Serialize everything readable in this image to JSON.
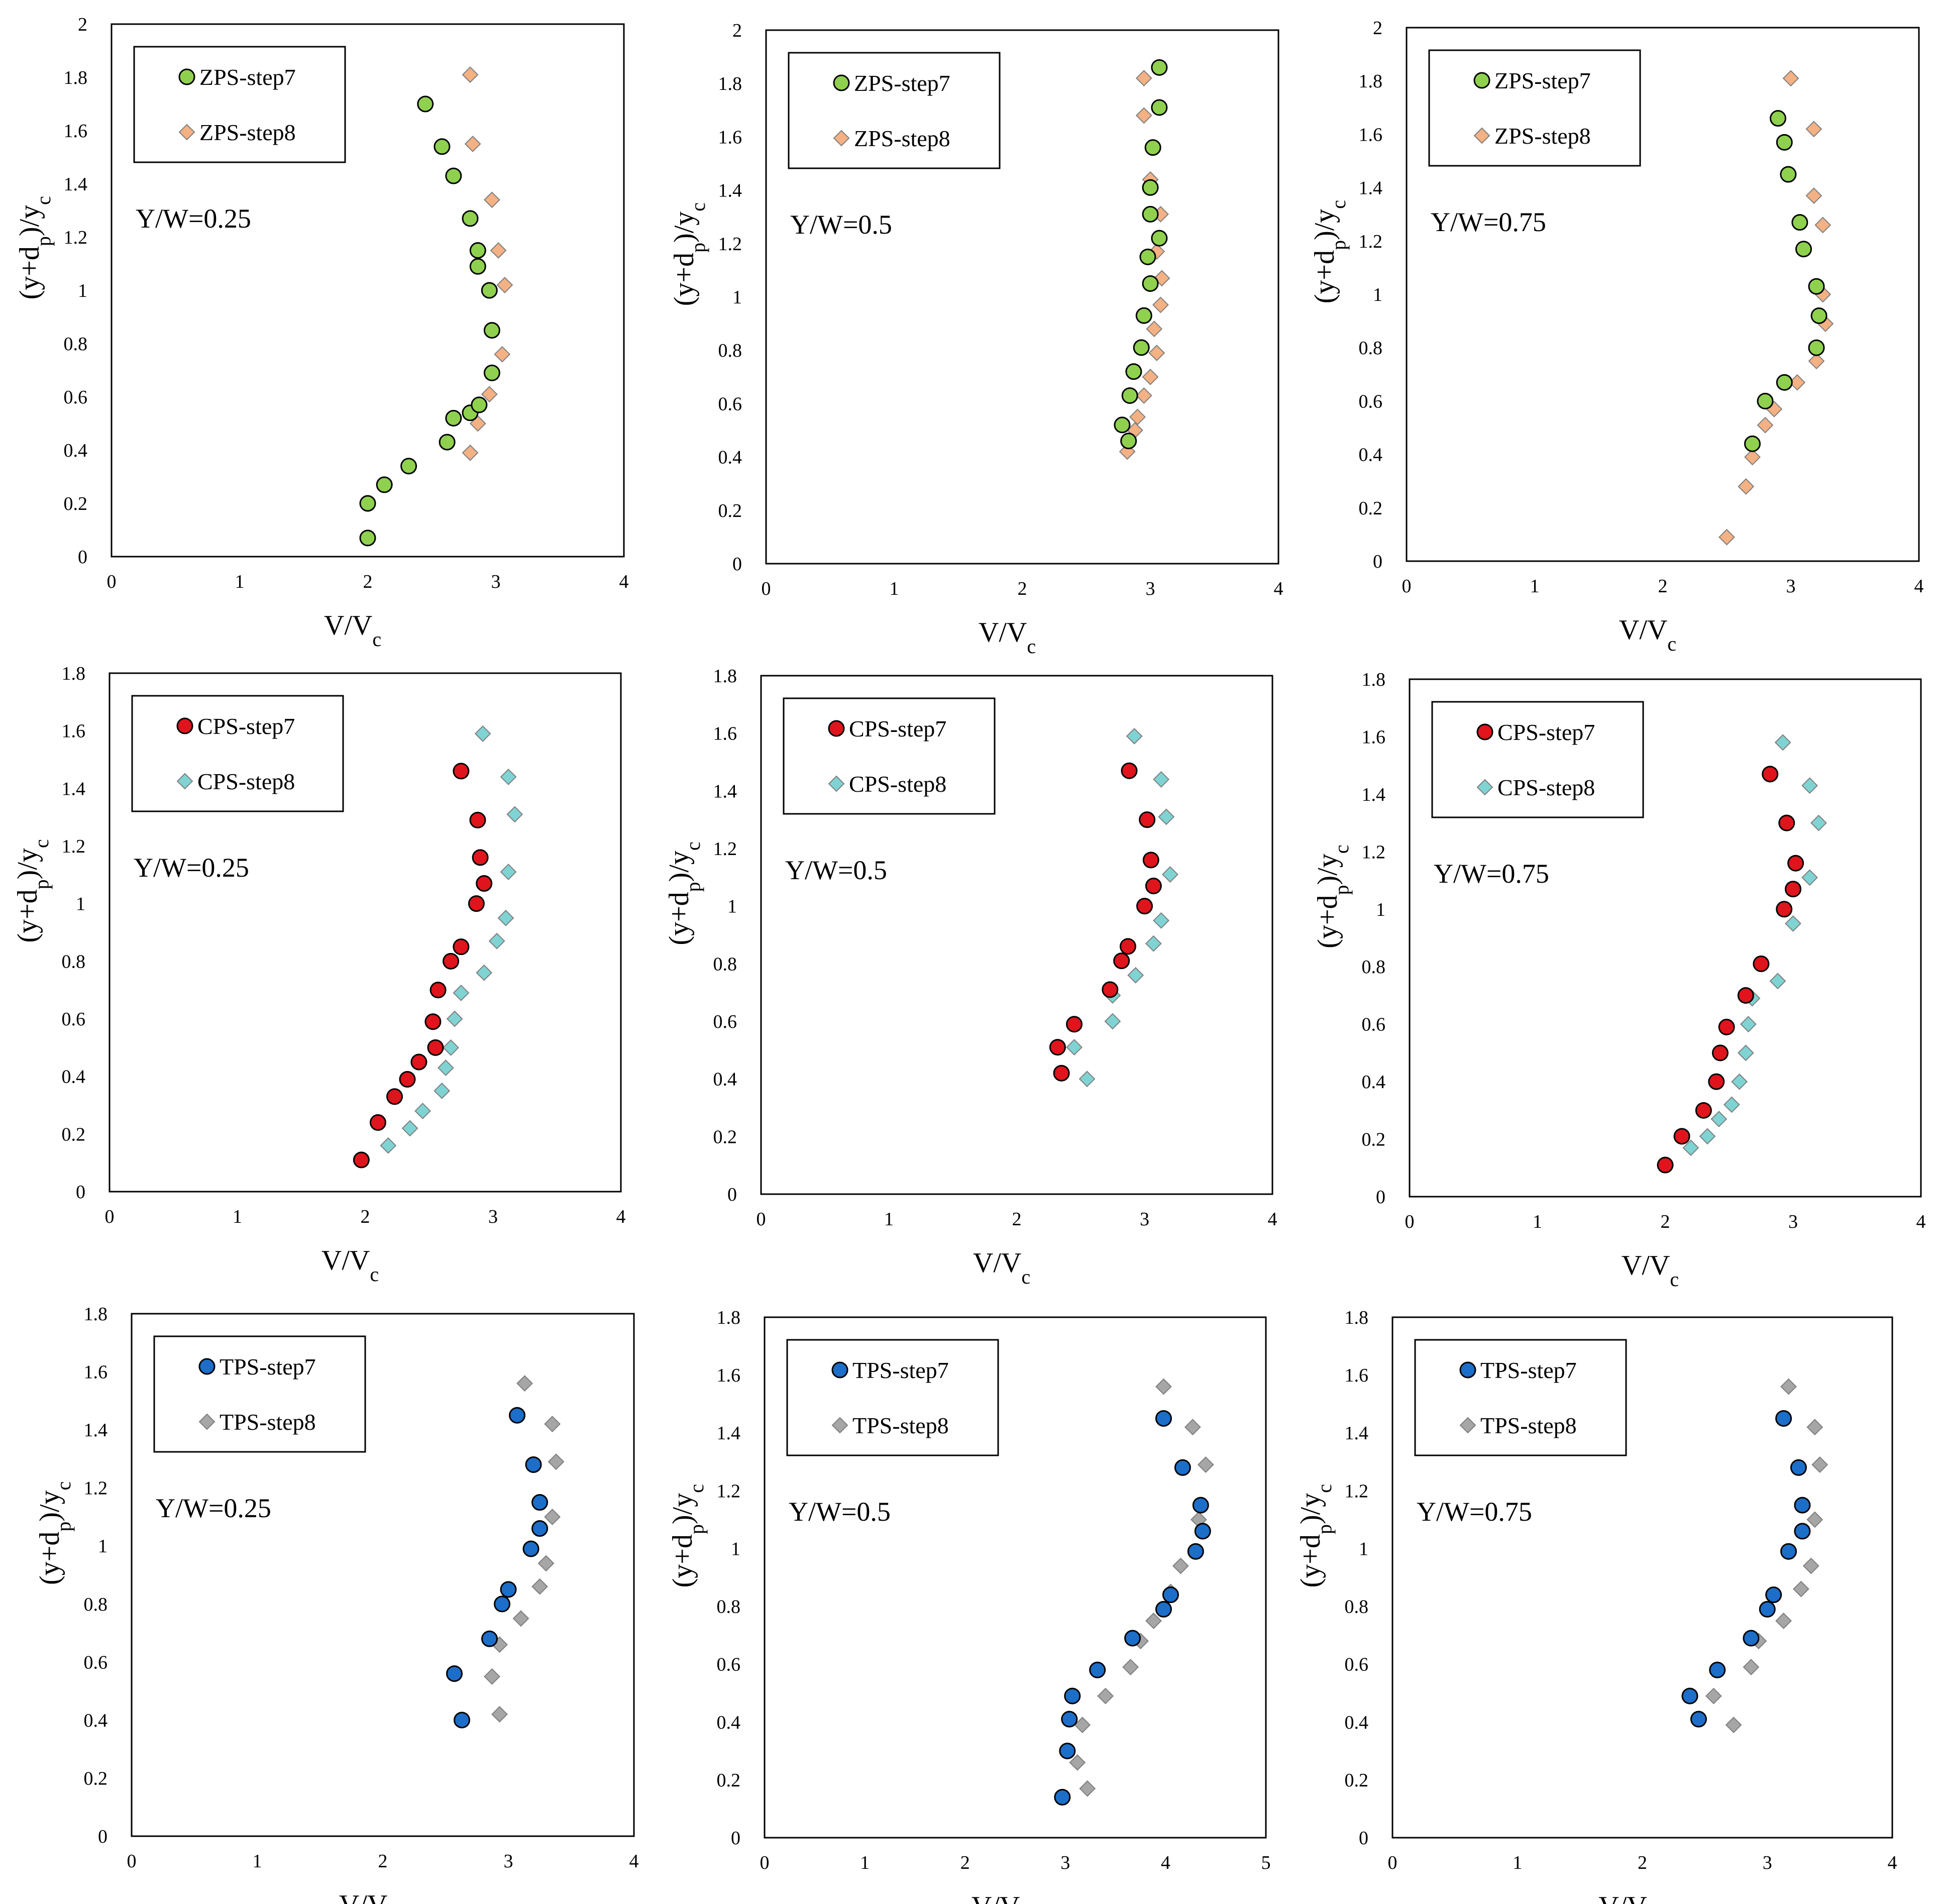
{
  "figure": {
    "ylabel": "(y+d_p)/y_c",
    "xlabel": "V/V_c",
    "colors": {
      "ZPS-step7": "#8fd14f",
      "ZPS-step8": "#f4b183",
      "CPS-step7": "#e0141c",
      "CPS-step8": "#7fd3d3",
      "TPS-step7": "#1c6ec8",
      "TPS-step8": "#a6a6a6"
    }
  },
  "chart_data": [
    {
      "type": "scatter",
      "title": "",
      "annotation": "Y/W=0.25",
      "xlabel": "V/V_c",
      "ylabel": "(y+d_p)/y_c",
      "xlim": [
        0,
        4
      ],
      "ylim": [
        0,
        2
      ],
      "yticks": [
        0,
        0.2,
        0.4,
        0.6,
        0.8,
        1,
        1.2,
        1.4,
        1.6,
        1.8,
        2
      ],
      "xticks": [
        0,
        1,
        2,
        3,
        4
      ],
      "series": [
        {
          "name": "ZPS-step7",
          "marker": "circle",
          "x": [
            2.0,
            2.0,
            2.13,
            2.32,
            2.62,
            2.67,
            2.8,
            2.87,
            2.97,
            2.97,
            2.95,
            2.86,
            2.86,
            2.8,
            2.67,
            2.58,
            2.45
          ],
          "y": [
            0.07,
            0.2,
            0.27,
            0.34,
            0.43,
            0.52,
            0.54,
            0.57,
            0.69,
            0.85,
            1.0,
            1.09,
            1.15,
            1.27,
            1.43,
            1.54,
            1.7
          ]
        },
        {
          "name": "ZPS-step8",
          "marker": "diamond",
          "x": [
            2.8,
            2.86,
            2.95,
            3.05,
            3.07,
            3.02,
            2.97,
            2.82,
            2.8
          ],
          "y": [
            0.39,
            0.5,
            0.61,
            0.76,
            1.02,
            1.15,
            1.34,
            1.55,
            1.81
          ]
        }
      ]
    },
    {
      "type": "scatter",
      "title": "",
      "annotation": "Y/W=0.5",
      "xlabel": "V/V_c",
      "ylabel": "(y+d_p)/y_c",
      "xlim": [
        0,
        4
      ],
      "ylim": [
        0,
        2
      ],
      "yticks": [
        0,
        0.2,
        0.4,
        0.6,
        0.8,
        1,
        1.2,
        1.4,
        1.6,
        1.8,
        2
      ],
      "xticks": [
        0,
        1,
        2,
        3,
        4
      ],
      "series": [
        {
          "name": "ZPS-step7",
          "marker": "circle",
          "x": [
            2.83,
            2.78,
            2.84,
            2.87,
            2.93,
            2.95,
            3.0,
            2.98,
            3.07,
            3.0,
            3.0,
            3.02,
            3.07,
            3.07
          ],
          "y": [
            0.46,
            0.52,
            0.63,
            0.72,
            0.81,
            0.93,
            1.05,
            1.15,
            1.22,
            1.31,
            1.41,
            1.56,
            1.71,
            1.86
          ]
        },
        {
          "name": "ZPS-step8",
          "marker": "diamond",
          "x": [
            2.82,
            2.88,
            2.9,
            2.95,
            3.0,
            3.05,
            3.03,
            3.08,
            3.09,
            3.05,
            3.08,
            3.0,
            2.95,
            2.95
          ],
          "y": [
            0.42,
            0.5,
            0.55,
            0.63,
            0.7,
            0.79,
            0.88,
            0.97,
            1.07,
            1.17,
            1.31,
            1.44,
            1.68,
            1.82
          ]
        }
      ]
    },
    {
      "type": "scatter",
      "title": "",
      "annotation": "Y/W=0.75",
      "xlabel": "V/V_c",
      "ylabel": "(y+d_p)/y_c",
      "xlim": [
        0,
        4
      ],
      "ylim": [
        0,
        2
      ],
      "yticks": [
        0,
        0.2,
        0.4,
        0.6,
        0.8,
        1,
        1.2,
        1.4,
        1.6,
        1.8,
        2
      ],
      "xticks": [
        0,
        1,
        2,
        3,
        4
      ],
      "series": [
        {
          "name": "ZPS-step7",
          "marker": "circle",
          "x": [
            2.7,
            2.8,
            2.95,
            3.2,
            3.22,
            3.2,
            3.1,
            3.07,
            2.98,
            2.95,
            2.9
          ],
          "y": [
            0.44,
            0.6,
            0.67,
            0.8,
            0.92,
            1.03,
            1.17,
            1.27,
            1.45,
            1.57,
            1.66
          ]
        },
        {
          "name": "ZPS-step8",
          "marker": "diamond",
          "x": [
            2.5,
            2.65,
            2.7,
            2.8,
            2.87,
            3.05,
            3.2,
            3.27,
            3.25,
            3.25,
            3.18,
            3.18,
            3.0
          ],
          "y": [
            0.09,
            0.28,
            0.39,
            0.51,
            0.57,
            0.67,
            0.75,
            0.89,
            1.0,
            1.26,
            1.37,
            1.62,
            1.81
          ]
        }
      ]
    },
    {
      "type": "scatter",
      "title": "",
      "annotation": "Y/W=0.25",
      "xlabel": "V/V_c",
      "ylabel": "(y+d_p)/y_c",
      "xlim": [
        0,
        4
      ],
      "ylim": [
        0,
        1.8
      ],
      "yticks": [
        0,
        0.2,
        0.4,
        0.6,
        0.8,
        1,
        1.2,
        1.4,
        1.6,
        1.8
      ],
      "xticks": [
        0,
        1,
        2,
        3,
        4
      ],
      "series": [
        {
          "name": "CPS-step7",
          "marker": "circle",
          "x": [
            1.97,
            2.1,
            2.23,
            2.33,
            2.42,
            2.55,
            2.53,
            2.57,
            2.67,
            2.75,
            2.87,
            2.93,
            2.9,
            2.88,
            2.75
          ],
          "y": [
            0.11,
            0.24,
            0.33,
            0.39,
            0.45,
            0.5,
            0.59,
            0.7,
            0.8,
            0.85,
            1.0,
            1.07,
            1.16,
            1.29,
            1.46
          ]
        },
        {
          "name": "CPS-step8",
          "marker": "diamond",
          "x": [
            2.18,
            2.35,
            2.45,
            2.6,
            2.63,
            2.67,
            2.7,
            2.75,
            2.93,
            3.03,
            3.1,
            3.12,
            3.17,
            3.12,
            2.92
          ],
          "y": [
            0.16,
            0.22,
            0.28,
            0.35,
            0.43,
            0.5,
            0.6,
            0.69,
            0.76,
            0.87,
            0.95,
            1.11,
            1.31,
            1.44,
            1.59
          ]
        }
      ]
    },
    {
      "type": "scatter",
      "title": "",
      "annotation": "Y/W=0.5",
      "xlabel": "V/V_c",
      "ylabel": "(y+d_p)/y_c",
      "xlim": [
        0,
        4
      ],
      "ylim": [
        0,
        1.8
      ],
      "yticks": [
        0,
        0.2,
        0.4,
        0.6,
        0.8,
        1,
        1.2,
        1.4,
        1.6,
        1.8
      ],
      "xticks": [
        0,
        1,
        2,
        3,
        4
      ],
      "series": [
        {
          "name": "CPS-step7",
          "marker": "circle",
          "x": [
            2.35,
            2.32,
            2.45,
            2.73,
            2.82,
            2.87,
            3.0,
            3.07,
            3.05,
            3.02,
            2.88
          ],
          "y": [
            0.42,
            0.51,
            0.59,
            0.71,
            0.81,
            0.86,
            1.0,
            1.07,
            1.16,
            1.3,
            1.47
          ]
        },
        {
          "name": "CPS-step8",
          "marker": "diamond",
          "x": [
            2.55,
            2.45,
            2.75,
            2.75,
            2.93,
            3.07,
            3.13,
            3.2,
            3.17,
            3.13,
            2.92
          ],
          "y": [
            0.4,
            0.51,
            0.6,
            0.69,
            0.76,
            0.87,
            0.95,
            1.11,
            1.31,
            1.44,
            1.59
          ]
        }
      ]
    },
    {
      "type": "scatter",
      "title": "",
      "annotation": "Y/W=0.75",
      "xlabel": "V/V_c",
      "ylabel": "(y+d_p)/y_c",
      "xlim": [
        0,
        4
      ],
      "ylim": [
        0,
        1.8
      ],
      "yticks": [
        0,
        0.2,
        0.4,
        0.6,
        0.8,
        1,
        1.2,
        1.4,
        1.6,
        1.8
      ],
      "xticks": [
        0,
        1,
        2,
        3,
        4
      ],
      "series": [
        {
          "name": "CPS-step7",
          "marker": "circle",
          "x": [
            2.0,
            2.13,
            2.3,
            2.4,
            2.43,
            2.48,
            2.63,
            2.75,
            2.93,
            3.0,
            3.02,
            2.95,
            2.82
          ],
          "y": [
            0.11,
            0.21,
            0.3,
            0.4,
            0.5,
            0.59,
            0.7,
            0.81,
            1.0,
            1.07,
            1.16,
            1.3,
            1.47
          ]
        },
        {
          "name": "CPS-step8",
          "marker": "diamond",
          "x": [
            2.2,
            2.33,
            2.42,
            2.52,
            2.58,
            2.63,
            2.65,
            2.68,
            2.88,
            3.0,
            3.13,
            3.2,
            3.13,
            2.92
          ],
          "y": [
            0.17,
            0.21,
            0.27,
            0.32,
            0.4,
            0.5,
            0.6,
            0.69,
            0.75,
            0.95,
            1.11,
            1.3,
            1.43,
            1.58
          ]
        }
      ]
    },
    {
      "type": "scatter",
      "title": "",
      "annotation": "Y/W=0.25",
      "xlabel": "V/V_c",
      "ylabel": "(y+d_p)/y_c",
      "xlim": [
        0,
        4
      ],
      "ylim": [
        0,
        1.8
      ],
      "yticks": [
        0,
        0.2,
        0.4,
        0.6,
        0.8,
        1,
        1.2,
        1.4,
        1.6,
        1.8
      ],
      "xticks": [
        0,
        1,
        2,
        3,
        4
      ],
      "series": [
        {
          "name": "TPS-step7",
          "marker": "circle",
          "x": [
            2.63,
            2.57,
            2.85,
            2.95,
            3.0,
            3.18,
            3.25,
            3.25,
            3.2,
            3.07
          ],
          "y": [
            0.4,
            0.56,
            0.68,
            0.8,
            0.85,
            0.99,
            1.06,
            1.15,
            1.28,
            1.45
          ]
        },
        {
          "name": "TPS-step8",
          "marker": "diamond",
          "x": [
            2.93,
            2.87,
            2.93,
            3.1,
            3.25,
            3.3,
            3.35,
            3.38,
            3.35,
            3.13
          ],
          "y": [
            0.42,
            0.55,
            0.66,
            0.75,
            0.86,
            0.94,
            1.1,
            1.29,
            1.42,
            1.56
          ]
        }
      ]
    },
    {
      "type": "scatter",
      "title": "",
      "annotation": "Y/W=0.5",
      "xlabel": "V/V_c",
      "ylabel": "(y+d_p)/y_c",
      "xlim": [
        0,
        5
      ],
      "ylim": [
        0,
        1.8
      ],
      "yticks": [
        0,
        0.2,
        0.4,
        0.6,
        0.8,
        1,
        1.2,
        1.4,
        1.6,
        1.8
      ],
      "xticks": [
        0,
        1,
        2,
        3,
        4,
        5
      ],
      "series": [
        {
          "name": "TPS-step7",
          "marker": "circle",
          "x": [
            2.97,
            3.02,
            3.04,
            3.07,
            3.32,
            3.67,
            3.98,
            4.05,
            4.3,
            4.37,
            4.35,
            4.17,
            3.98
          ],
          "y": [
            0.14,
            0.3,
            0.41,
            0.49,
            0.58,
            0.69,
            0.79,
            0.84,
            0.99,
            1.06,
            1.15,
            1.28,
            1.45
          ]
        },
        {
          "name": "TPS-step8",
          "marker": "diamond",
          "x": [
            3.22,
            3.12,
            3.17,
            3.4,
            3.65,
            3.75,
            3.88,
            4.05,
            4.15,
            4.33,
            4.4,
            4.27,
            3.98
          ],
          "y": [
            0.17,
            0.26,
            0.39,
            0.49,
            0.59,
            0.68,
            0.75,
            0.85,
            0.94,
            1.1,
            1.29,
            1.42,
            1.56
          ]
        }
      ]
    },
    {
      "type": "scatter",
      "title": "",
      "annotation": "Y/W=0.75",
      "xlabel": "V/V_c",
      "ylabel": "(y+d_p)/y_c",
      "xlim": [
        0,
        4
      ],
      "ylim": [
        0,
        1.8
      ],
      "yticks": [
        0,
        0.2,
        0.4,
        0.6,
        0.8,
        1,
        1.2,
        1.4,
        1.6,
        1.8
      ],
      "xticks": [
        0,
        1,
        2,
        3,
        4
      ],
      "series": [
        {
          "name": "TPS-step7",
          "marker": "circle",
          "x": [
            2.45,
            2.38,
            2.6,
            2.87,
            3.0,
            3.05,
            3.17,
            3.28,
            3.28,
            3.25,
            3.13
          ],
          "y": [
            0.41,
            0.49,
            0.58,
            0.69,
            0.79,
            0.84,
            0.99,
            1.06,
            1.15,
            1.28,
            1.45
          ]
        },
        {
          "name": "TPS-step8",
          "marker": "diamond",
          "x": [
            2.73,
            2.57,
            2.87,
            2.93,
            3.13,
            3.27,
            3.35,
            3.38,
            3.42,
            3.38,
            3.17
          ],
          "y": [
            0.39,
            0.49,
            0.59,
            0.68,
            0.75,
            0.86,
            0.94,
            1.1,
            1.29,
            1.42,
            1.56
          ]
        }
      ]
    }
  ]
}
